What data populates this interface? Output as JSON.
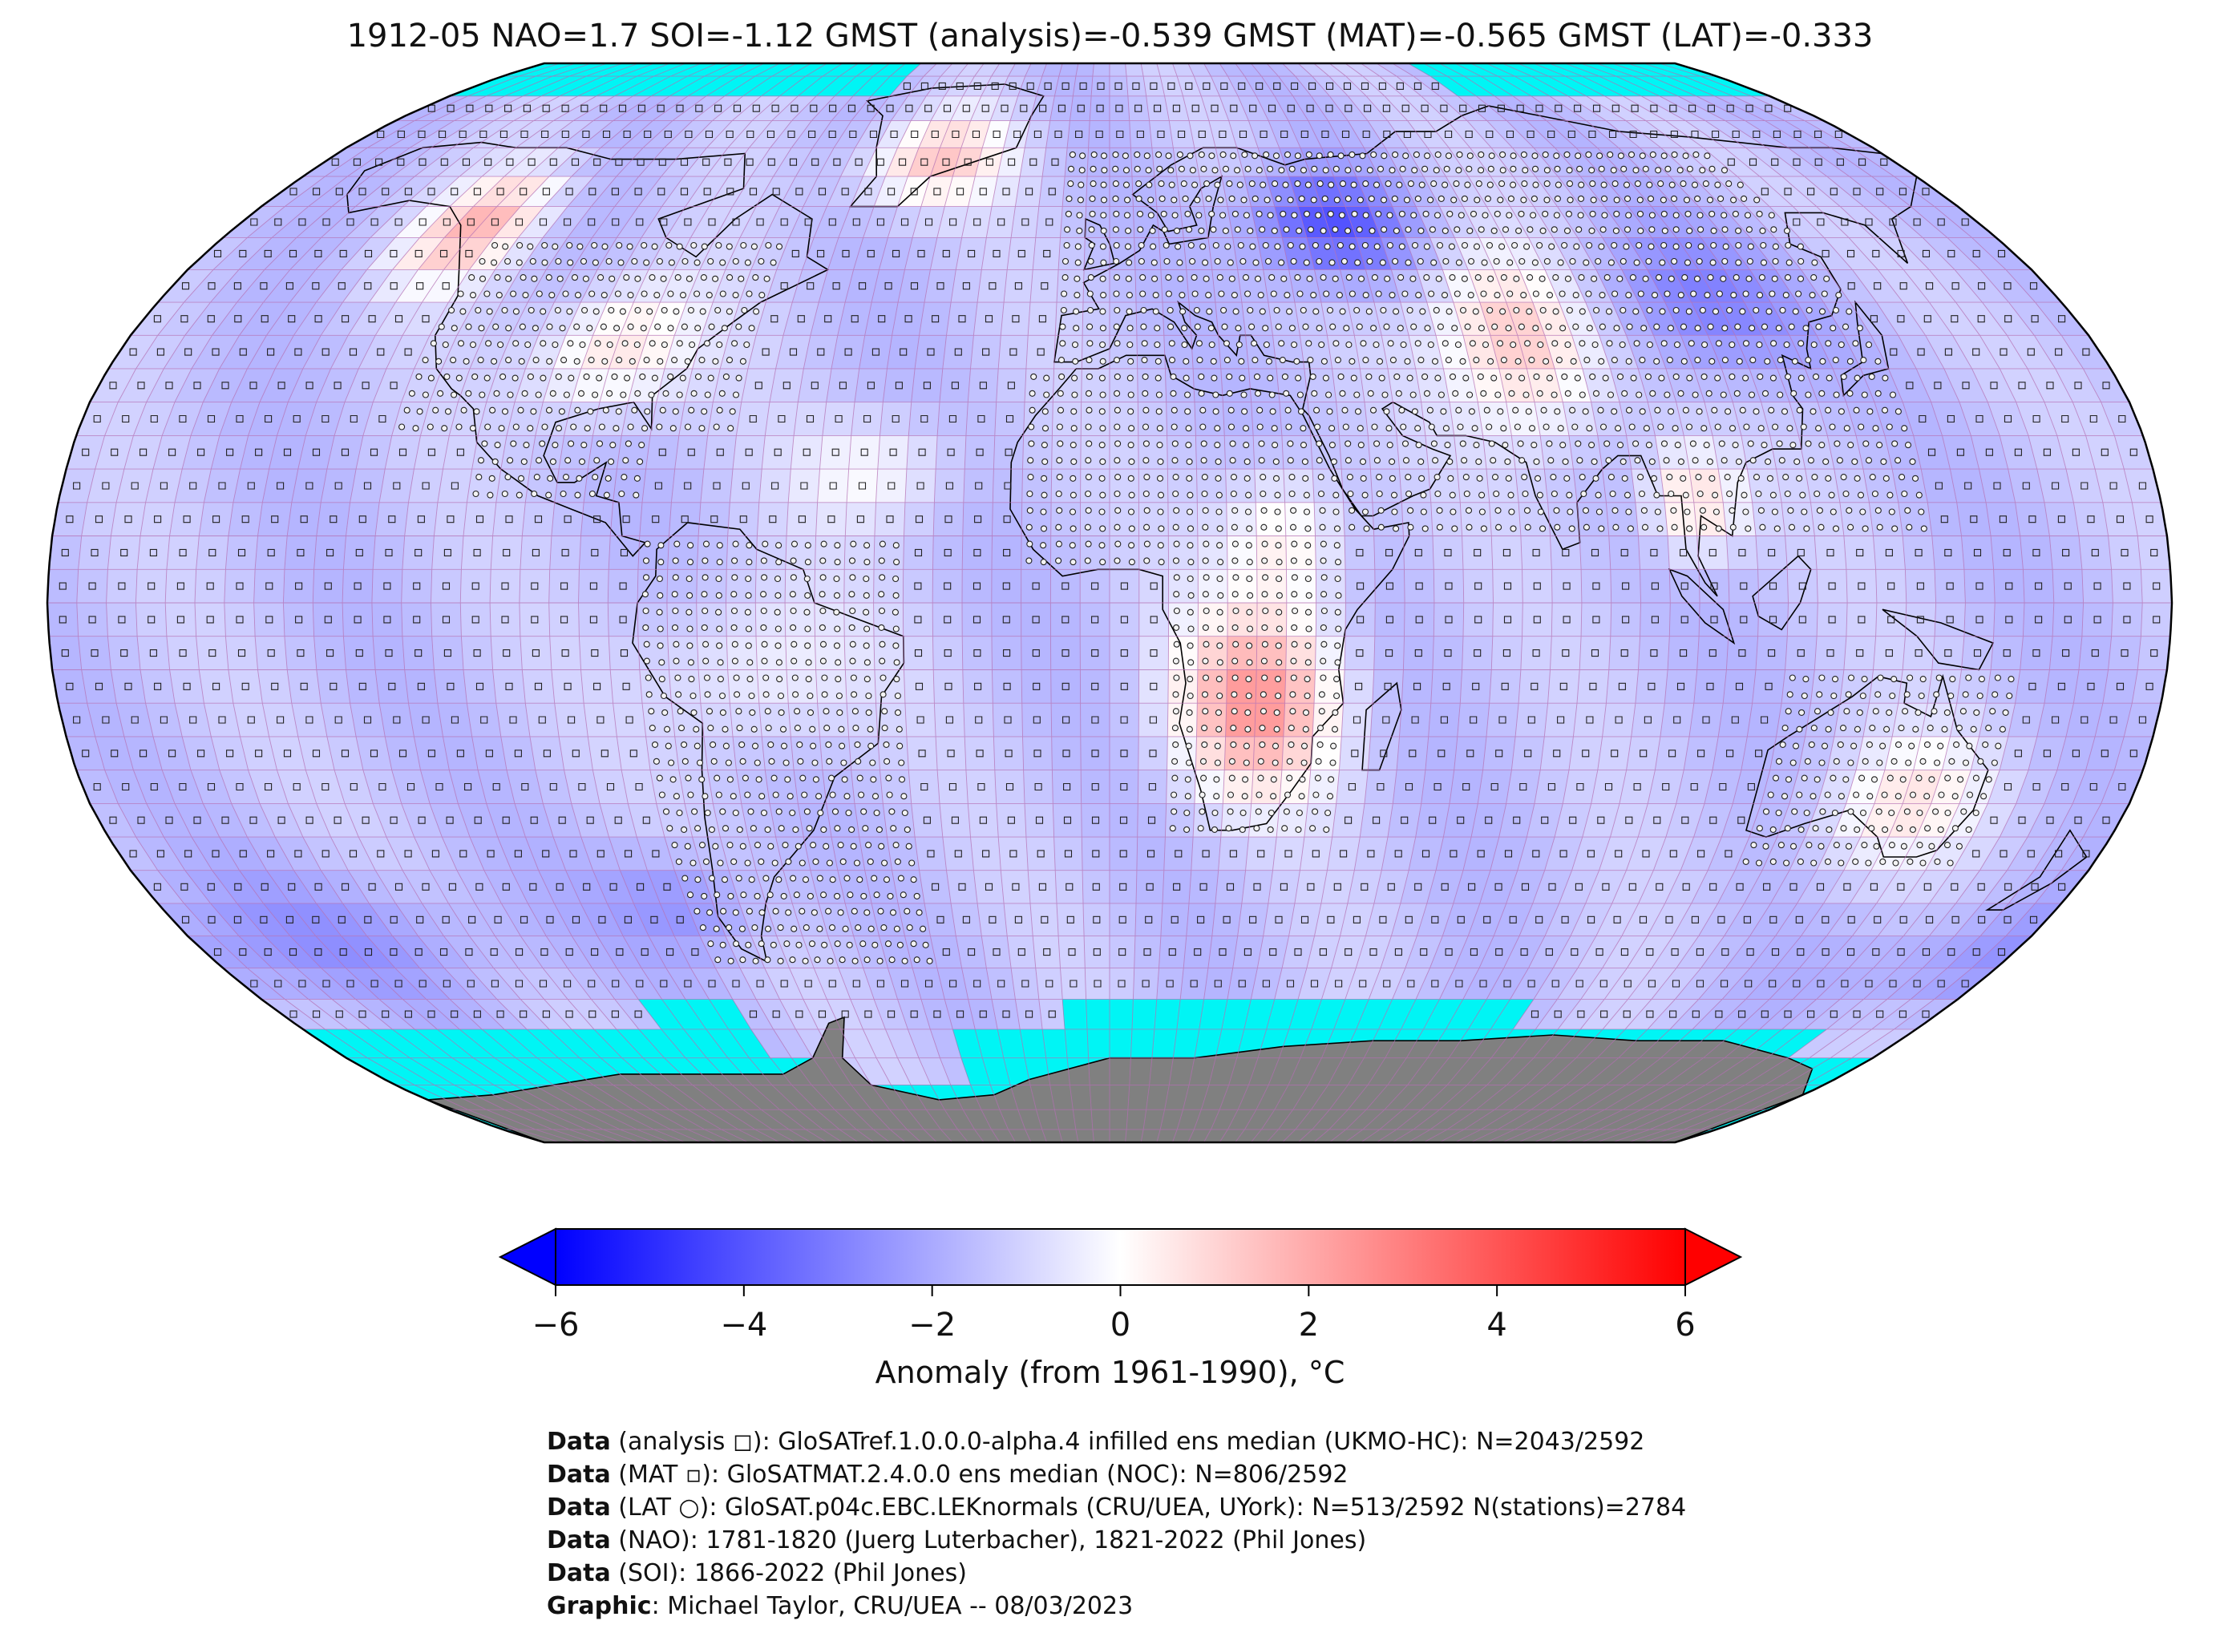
{
  "title": "1912-05 NAO=1.7 SOI=-1.12 GMST (analysis)=-0.539 GMST (MAT)=-0.565 GMST (LAT)=-0.333",
  "map": {
    "projection": "Robinson",
    "grid_resolution_deg": 5,
    "colors": {
      "no_data": "#00f5f5",
      "antarctica_land": "#808080",
      "grid_line": "#b36fb3",
      "coastline": "#000000"
    },
    "anomaly_regions": [
      {
        "label": "western North America",
        "anomaly": 1.5
      },
      {
        "label": "eastern North America",
        "anomaly": 0.8
      },
      {
        "label": "Greenland",
        "anomaly": 1.2
      },
      {
        "label": "western Russia",
        "anomaly": -4.0
      },
      {
        "label": "central Asia",
        "anomaly": 1.8
      },
      {
        "label": "China",
        "anomaly": -3.0
      },
      {
        "label": "southern Africa",
        "anomaly": 2.5
      },
      {
        "label": "Indochina",
        "anomaly": 1.5
      },
      {
        "label": "Pacific",
        "anomaly": -1.5
      },
      {
        "label": "Southern Ocean",
        "anomaly": -2.0
      }
    ]
  },
  "colorbar": {
    "min": -6,
    "max": 6,
    "ticks": [
      "−6",
      "−4",
      "−2",
      "0",
      "2",
      "4",
      "6"
    ],
    "colors": {
      "low": "#0000ff",
      "mid": "#ffffff",
      "high": "#ff0000"
    },
    "label": "Anomaly (from 1961-1990), °C"
  },
  "credits": [
    {
      "bold": "Data",
      "text": " (analysis ◻): GloSATref.1.0.0.0-alpha.4 infilled ens median (UKMO-HC): N=2043/2592"
    },
    {
      "bold": "Data",
      "text": " (MAT ▫): GloSATMAT.2.4.0.0 ens median (NOC): N=806/2592"
    },
    {
      "bold": "Data",
      "text": " (LAT ○): GloSAT.p04c.EBC.LEKnormals (CRU/UEA, UYork): N=513/2592 N(stations)=2784"
    },
    {
      "bold": "Data",
      "text": " (NAO): 1781-1820 (Juerg Luterbacher), 1821-2022 (Phil Jones)"
    },
    {
      "bold": "Data",
      "text": " (SOI): 1866-2022 (Phil Jones)"
    },
    {
      "bold": "Graphic",
      "text": ": Michael Taylor, CRU/UEA -- 08/03/2023"
    }
  ]
}
